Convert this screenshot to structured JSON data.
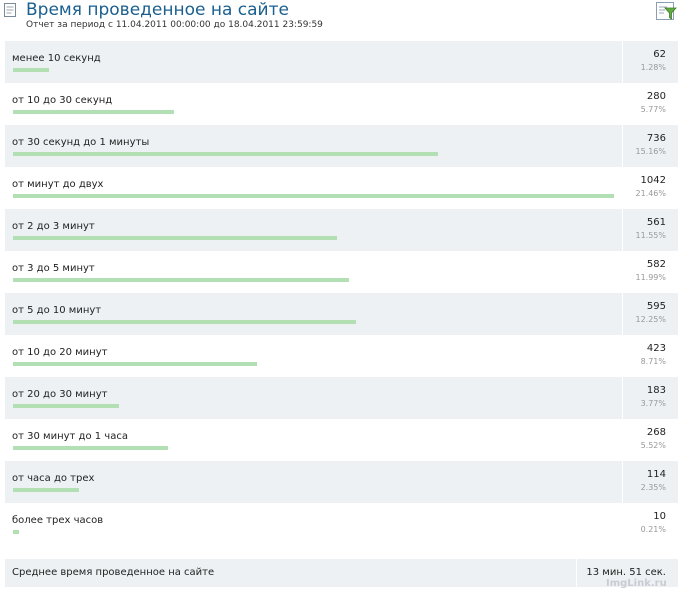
{
  "header": {
    "title": "Время проведенное на сайте",
    "subtitle": "Отчет за период с 11.04.2011 00:00:00 до 18.04.2011 23:59:59"
  },
  "rows": [
    {
      "label": "менее 10 секунд",
      "count": "62",
      "pct": "1.28%",
      "value": 62
    },
    {
      "label": "от 10 до 30 секунд",
      "count": "280",
      "pct": "5.77%",
      "value": 280
    },
    {
      "label": "от 30 секунд до 1 минуты",
      "count": "736",
      "pct": "15.16%",
      "value": 736
    },
    {
      "label": "от минут до двух",
      "count": "1042",
      "pct": "21.46%",
      "value": 1042
    },
    {
      "label": "от 2 до 3 минут",
      "count": "561",
      "pct": "11.55%",
      "value": 561
    },
    {
      "label": "от 3 до 5 минут",
      "count": "582",
      "pct": "11.99%",
      "value": 582
    },
    {
      "label": "от 5 до 10 минут",
      "count": "595",
      "pct": "12.25%",
      "value": 595
    },
    {
      "label": "от 10 до 20 минут",
      "count": "423",
      "pct": "8.71%",
      "value": 423
    },
    {
      "label": "от 20 до 30 минут",
      "count": "183",
      "pct": "3.77%",
      "value": 183
    },
    {
      "label": "от 30 минут до 1 часа",
      "count": "268",
      "pct": "5.52%",
      "value": 268
    },
    {
      "label": "от часа до трех",
      "count": "114",
      "pct": "2.35%",
      "value": 114
    },
    {
      "label": "более трех часов",
      "count": "10",
      "pct": "0.21%",
      "value": 10
    }
  ],
  "footer": {
    "label": "Среднее время проведенное на сайте",
    "value": "13 мин. 51 сек."
  },
  "watermark": "ImgLink.ru",
  "colors": {
    "bar": "#b2e0b4",
    "title": "#1a5f8f",
    "row_shade": "#edf1f4"
  },
  "icons": {
    "title": "document-icon",
    "filter": "filter-icon"
  }
}
